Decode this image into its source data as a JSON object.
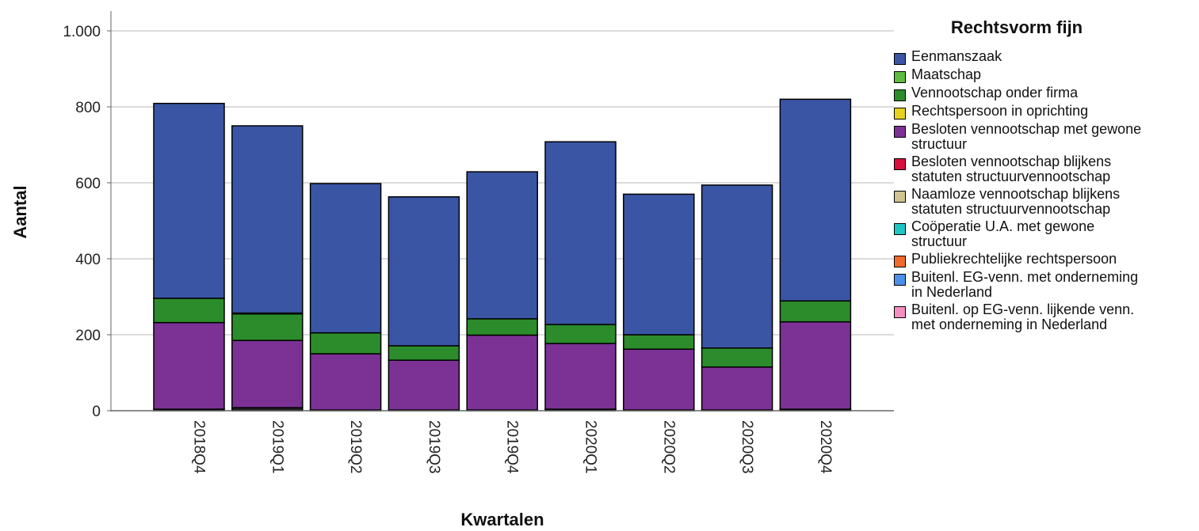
{
  "chart_data": {
    "type": "bar",
    "stacked": true,
    "xlabel": "Kwartalen",
    "ylabel": "Aantal",
    "ylim": [
      0,
      1000
    ],
    "yticks": [
      0,
      200,
      400,
      600,
      800,
      1000
    ],
    "ytick_labels": [
      "0",
      "200",
      "400",
      "600",
      "800",
      "1.000"
    ],
    "grid": true,
    "categories": [
      "2018Q4",
      "2019Q1",
      "2019Q2",
      "2019Q3",
      "2019Q4",
      "2020Q1",
      "2020Q2",
      "2020Q3",
      "2020Q4"
    ],
    "legend": {
      "title": "Rechtsvorm fijn",
      "position": "right",
      "entries": [
        {
          "label": "Eenmanszaak",
          "color": "#3A55A4"
        },
        {
          "label": "Maatschap",
          "color": "#5EBB3E"
        },
        {
          "label": "Vennootschap onder firma",
          "color": "#2C8C2C"
        },
        {
          "label": "Rechtspersoon in oprichting",
          "color": "#E6D21E"
        },
        {
          "label": "Besloten vennootschap met gewone\nstructuur",
          "color": "#7B3294"
        },
        {
          "label": "Besloten vennootschap blijkens\nstatuten structuurvennootschap",
          "color": "#D7103C"
        },
        {
          "label": "Naamloze vennootschap blijkens\nstatuten structuurvennootschap",
          "color": "#CFC391"
        },
        {
          "label": "Coöperatie U.A. met gewone\nstructuur",
          "color": "#1FC4C4"
        },
        {
          "label": "Publiekrechtelijke rechtspersoon",
          "color": "#F26A2B"
        },
        {
          "label": "Buitenl. EG-venn. met onderneming\nin Nederland",
          "color": "#4C8FE6"
        },
        {
          "label": "Buitenl. op EG-venn. lijkende venn.\nmet onderneming in Nederland",
          "color": "#F48FC0"
        }
      ]
    },
    "series": [
      {
        "color": "#222222",
        "values": [
          4,
          8,
          2,
          2,
          2,
          4,
          2,
          2,
          4
        ]
      },
      {
        "color": "#7B3294",
        "values": [
          228,
          177,
          148,
          131,
          197,
          173,
          160,
          113,
          230
        ]
      },
      {
        "color": "#2C8C2C",
        "values": [
          64,
          70,
          55,
          38,
          43,
          50,
          38,
          50,
          55
        ]
      },
      {
        "color": "#5EBB3E",
        "values": [
          0,
          2,
          0,
          0,
          0,
          0,
          0,
          0,
          0
        ]
      },
      {
        "color": "#3A55A4",
        "values": [
          513,
          493,
          393,
          392,
          387,
          481,
          370,
          429,
          531
        ]
      }
    ]
  }
}
